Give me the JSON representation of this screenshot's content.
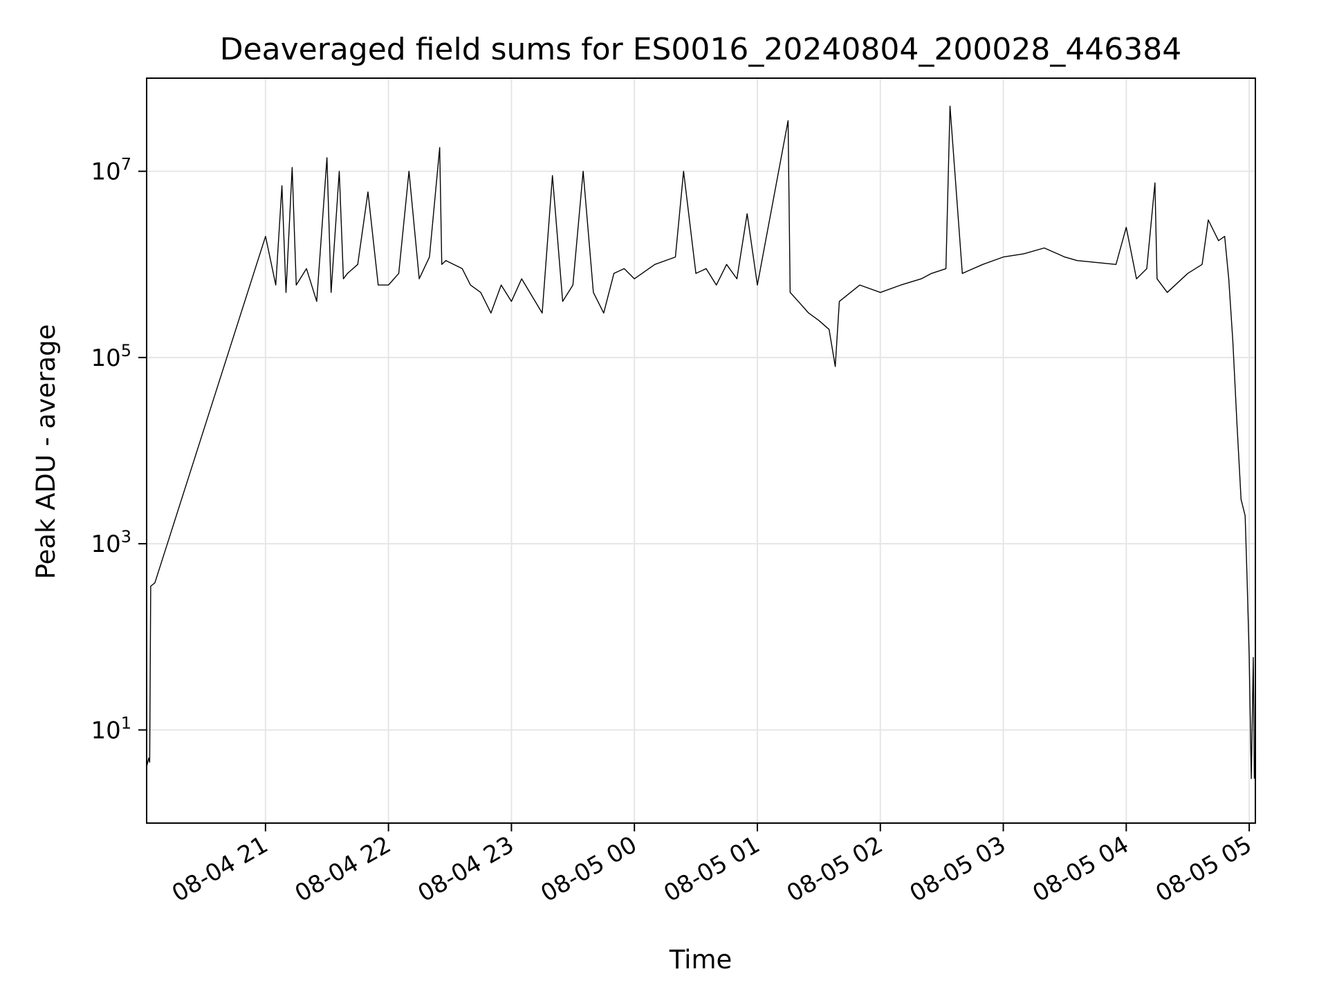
{
  "chart_data": {
    "type": "line",
    "title": "Deaveraged field sums for ES0016_20240804_200028_446384",
    "xlabel": "Time",
    "ylabel": "Peak ADU - average",
    "yscale": "log",
    "ylim": [
      1,
      100000000
    ],
    "xlim": [
      "2024-08-04 20:02",
      "2024-08-05 05:03"
    ],
    "grid": true,
    "line_color": "#000000",
    "x_ticks": [
      {
        "t": "2024-08-04 21:00",
        "label": "08-04 21"
      },
      {
        "t": "2024-08-04 22:00",
        "label": "08-04 22"
      },
      {
        "t": "2024-08-04 23:00",
        "label": "08-04 23"
      },
      {
        "t": "2024-08-05 00:00",
        "label": "08-05 00"
      },
      {
        "t": "2024-08-05 01:00",
        "label": "08-05 01"
      },
      {
        "t": "2024-08-05 02:00",
        "label": "08-05 02"
      },
      {
        "t": "2024-08-05 03:00",
        "label": "08-05 03"
      },
      {
        "t": "2024-08-05 04:00",
        "label": "08-05 04"
      },
      {
        "t": "2024-08-05 05:00",
        "label": "08-05 05"
      }
    ],
    "y_ticks": [
      {
        "v": 10,
        "base": "10",
        "exp": "1"
      },
      {
        "v": 1000,
        "base": "10",
        "exp": "3"
      },
      {
        "v": 100000,
        "base": "10",
        "exp": "5"
      },
      {
        "v": 10000000,
        "base": "10",
        "exp": "7"
      }
    ],
    "series": [
      {
        "x": [
          "2024-08-04 20:02",
          "2024-08-04 20:03",
          "2024-08-04 20:03:30",
          "2024-08-04 20:04",
          "2024-08-04 20:06",
          "2024-08-04 21:00",
          "2024-08-04 21:05",
          "2024-08-04 21:08",
          "2024-08-04 21:10",
          "2024-08-04 21:13",
          "2024-08-04 21:15",
          "2024-08-04 21:20",
          "2024-08-04 21:25",
          "2024-08-04 21:30",
          "2024-08-04 21:32",
          "2024-08-04 21:36",
          "2024-08-04 21:38",
          "2024-08-04 21:40",
          "2024-08-04 21:45",
          "2024-08-04 21:50",
          "2024-08-04 21:55",
          "2024-08-04 22:00",
          "2024-08-04 22:05",
          "2024-08-04 22:10",
          "2024-08-04 22:15",
          "2024-08-04 22:20",
          "2024-08-04 22:25",
          "2024-08-04 22:26",
          "2024-08-04 22:28",
          "2024-08-04 22:36",
          "2024-08-04 22:40",
          "2024-08-04 22:45",
          "2024-08-04 22:50",
          "2024-08-04 22:55",
          "2024-08-04 23:00",
          "2024-08-04 23:05",
          "2024-08-04 23:15",
          "2024-08-04 23:20",
          "2024-08-04 23:25",
          "2024-08-04 23:30",
          "2024-08-04 23:35",
          "2024-08-04 23:40",
          "2024-08-04 23:45",
          "2024-08-04 23:50",
          "2024-08-04 23:55",
          "2024-08-05 00:00",
          "2024-08-05 00:10",
          "2024-08-05 00:20",
          "2024-08-05 00:24",
          "2024-08-05 00:30",
          "2024-08-05 00:35",
          "2024-08-05 00:40",
          "2024-08-05 00:45",
          "2024-08-05 00:50",
          "2024-08-05 00:55",
          "2024-08-05 01:00",
          "2024-08-05 01:15",
          "2024-08-05 01:16",
          "2024-08-05 01:20",
          "2024-08-05 01:25",
          "2024-08-05 01:30",
          "2024-08-05 01:35",
          "2024-08-05 01:38",
          "2024-08-05 01:40",
          "2024-08-05 01:50",
          "2024-08-05 02:00",
          "2024-08-05 02:10",
          "2024-08-05 02:20",
          "2024-08-05 02:25",
          "2024-08-05 02:32",
          "2024-08-05 02:34",
          "2024-08-05 02:40",
          "2024-08-05 02:50",
          "2024-08-05 03:00",
          "2024-08-05 03:10",
          "2024-08-05 03:20",
          "2024-08-05 03:30",
          "2024-08-05 03:36",
          "2024-08-05 03:55",
          "2024-08-05 04:00",
          "2024-08-05 04:05",
          "2024-08-05 04:10",
          "2024-08-05 04:14",
          "2024-08-05 04:15",
          "2024-08-05 04:20",
          "2024-08-05 04:30",
          "2024-08-05 04:37",
          "2024-08-05 04:40",
          "2024-08-05 04:45",
          "2024-08-05 04:48",
          "2024-08-05 04:50",
          "2024-08-05 04:52",
          "2024-08-05 04:54",
          "2024-08-05 04:56",
          "2024-08-05 04:58",
          "2024-08-05 04:59",
          "2024-08-05 05:00",
          "2024-08-05 05:01",
          "2024-08-05 05:02",
          "2024-08-05 05:02:30"
        ],
        "y": [
          4,
          5,
          4.5,
          350,
          380,
          2000000,
          600000,
          7000000,
          500000,
          11000000,
          600000,
          900000,
          400000,
          14000000,
          500000,
          10000000,
          700000,
          800000,
          1000000,
          6000000,
          600000,
          600000,
          800000,
          10000000,
          700000,
          1200000,
          18000000,
          1000000,
          1100000,
          900000,
          600000,
          500000,
          300000,
          600000,
          400000,
          700000,
          300000,
          9000000,
          400000,
          600000,
          10000000,
          500000,
          300000,
          800000,
          900000,
          700000,
          1000000,
          1200000,
          10000000,
          800000,
          900000,
          600000,
          1000000,
          700000,
          3500000,
          600000,
          35000000,
          500000,
          400000,
          300000,
          250000,
          200000,
          80000,
          400000,
          600000,
          500000,
          600000,
          700000,
          800000,
          900000,
          50000000,
          800000,
          1000000,
          1200000,
          1300000,
          1500000,
          1200000,
          1100000,
          1000000,
          2500000,
          700000,
          900000,
          7500000,
          700000,
          500000,
          800000,
          1000000,
          3000000,
          1800000,
          2000000,
          700000,
          150000,
          20000,
          3000,
          2000,
          400,
          60,
          3,
          60,
          3
        ]
      }
    ]
  }
}
